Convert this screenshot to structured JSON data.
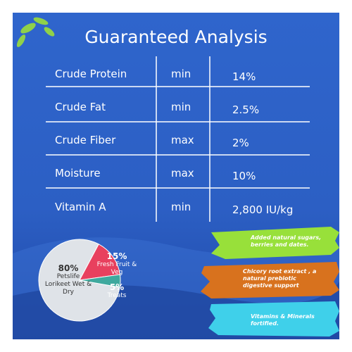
{
  "title": "Guaranteed Analysis",
  "table": {
    "rows": [
      [
        "Crude Protein",
        "min",
        "14%"
      ],
      [
        "Crude Fat",
        "min",
        "2.5%"
      ],
      [
        "Crude Fiber",
        "max",
        "2%"
      ],
      [
        "Moisture",
        "max",
        "10%"
      ],
      [
        "Vitamin A",
        "min",
        "2,800 IU/kg"
      ]
    ]
  },
  "chart_data": {
    "type": "pie",
    "categories": [
      "Petslife Lorikeet Wet & Dry",
      "Fresh Fruit & Veg",
      "Treats"
    ],
    "values": [
      80,
      15,
      5
    ],
    "value_labels": [
      "80%",
      "15%",
      "5%"
    ],
    "colors": [
      "#dfe3e8",
      "#e8405e",
      "#3fa99e"
    ]
  },
  "callouts": [
    "Added natural sugars, berries and dates.",
    "Chicory root extract , a natural prebiotic digestive support",
    "Vitamins & Minerals fortified."
  ]
}
